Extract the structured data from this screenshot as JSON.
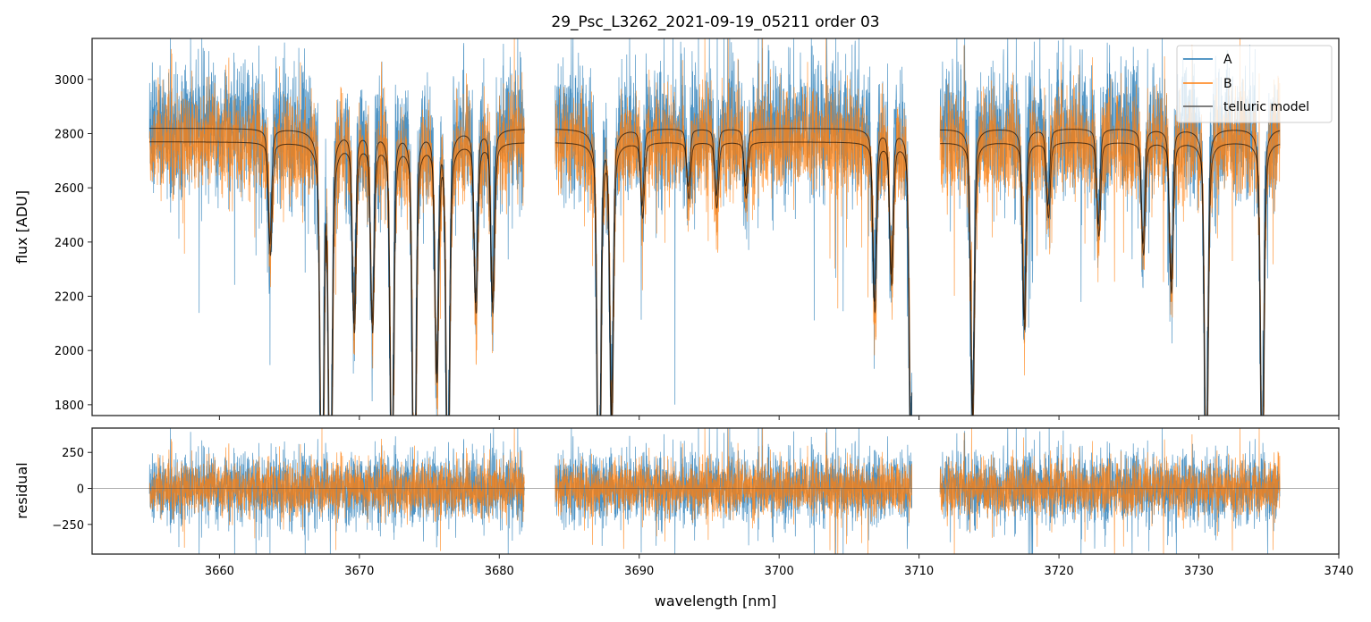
{
  "chart_data": [
    {
      "type": "line",
      "title": "29_Psc_L3262_2021-09-19_05211  order 03",
      "xlabel": "",
      "ylabel": "flux [ADU]",
      "xlim": [
        3650.9,
        3740
      ],
      "ylim": [
        1760,
        3151
      ],
      "yticks": [
        "1800",
        "2000",
        "2200",
        "2400",
        "2600",
        "2800",
        "3000"
      ],
      "xticks": [
        3660,
        3670,
        3680,
        3690,
        3700,
        3710,
        3720,
        3730,
        3740
      ],
      "legend": {
        "placement": "top-right",
        "entries": [
          "A",
          "B",
          "telluric model"
        ]
      },
      "segments_nm": [
        [
          3655.0,
          3681.8
        ],
        [
          3684.0,
          3709.5
        ],
        [
          3711.5,
          3735.8
        ]
      ],
      "series": [
        {
          "name": "A",
          "color": "#1f77b4",
          "continuum": 2800,
          "noise_sigma": 120
        },
        {
          "name": "B",
          "color": "#ff7f0e",
          "continuum": 2760,
          "noise_sigma": 90
        },
        {
          "name": "telluric model",
          "color": "#000000",
          "continuum_A": 2820,
          "continuum_B": 2770
        }
      ],
      "telluric_lines": [
        {
          "center": 3663.6,
          "depth": 0.12
        },
        {
          "center": 3667.3,
          "depth": 0.45
        },
        {
          "center": 3667.9,
          "depth": 0.45
        },
        {
          "center": 3669.6,
          "depth": 0.2
        },
        {
          "center": 3670.9,
          "depth": 0.2
        },
        {
          "center": 3672.3,
          "depth": 0.38
        },
        {
          "center": 3673.9,
          "depth": 0.45
        },
        {
          "center": 3675.5,
          "depth": 0.25
        },
        {
          "center": 3676.3,
          "depth": 0.4
        },
        {
          "center": 3678.3,
          "depth": 0.18
        },
        {
          "center": 3679.5,
          "depth": 0.18
        },
        {
          "center": 3687.1,
          "depth": 0.45
        },
        {
          "center": 3688.0,
          "depth": 0.3
        },
        {
          "center": 3690.2,
          "depth": 0.08
        },
        {
          "center": 3693.5,
          "depth": 0.06
        },
        {
          "center": 3695.5,
          "depth": 0.07
        },
        {
          "center": 3697.6,
          "depth": 0.06
        },
        {
          "center": 3706.8,
          "depth": 0.18
        },
        {
          "center": 3708.0,
          "depth": 0.15
        },
        {
          "center": 3709.4,
          "depth": 0.35
        },
        {
          "center": 3713.8,
          "depth": 0.3
        },
        {
          "center": 3717.5,
          "depth": 0.2
        },
        {
          "center": 3719.2,
          "depth": 0.08
        },
        {
          "center": 3722.8,
          "depth": 0.1
        },
        {
          "center": 3726.0,
          "depth": 0.12
        },
        {
          "center": 3728.0,
          "depth": 0.16
        },
        {
          "center": 3730.5,
          "depth": 0.38
        },
        {
          "center": 3734.5,
          "depth": 0.36
        }
      ]
    },
    {
      "type": "line",
      "title": "",
      "xlabel": "wavelength [nm]",
      "ylabel": "residual",
      "xlim": [
        3650.9,
        3740
      ],
      "ylim": [
        -456,
        419
      ],
      "yticks": [
        "−250",
        "0",
        "250"
      ],
      "xticklabels": [
        "3660",
        "3670",
        "3680",
        "3690",
        "3700",
        "3710",
        "3720",
        "3730",
        "3740"
      ],
      "series": [
        {
          "name": "A residual",
          "color": "#1f77b4",
          "noise_sigma": 120
        },
        {
          "name": "B residual",
          "color": "#ff7f0e",
          "noise_sigma": 90
        }
      ],
      "zero_line": 0
    }
  ]
}
